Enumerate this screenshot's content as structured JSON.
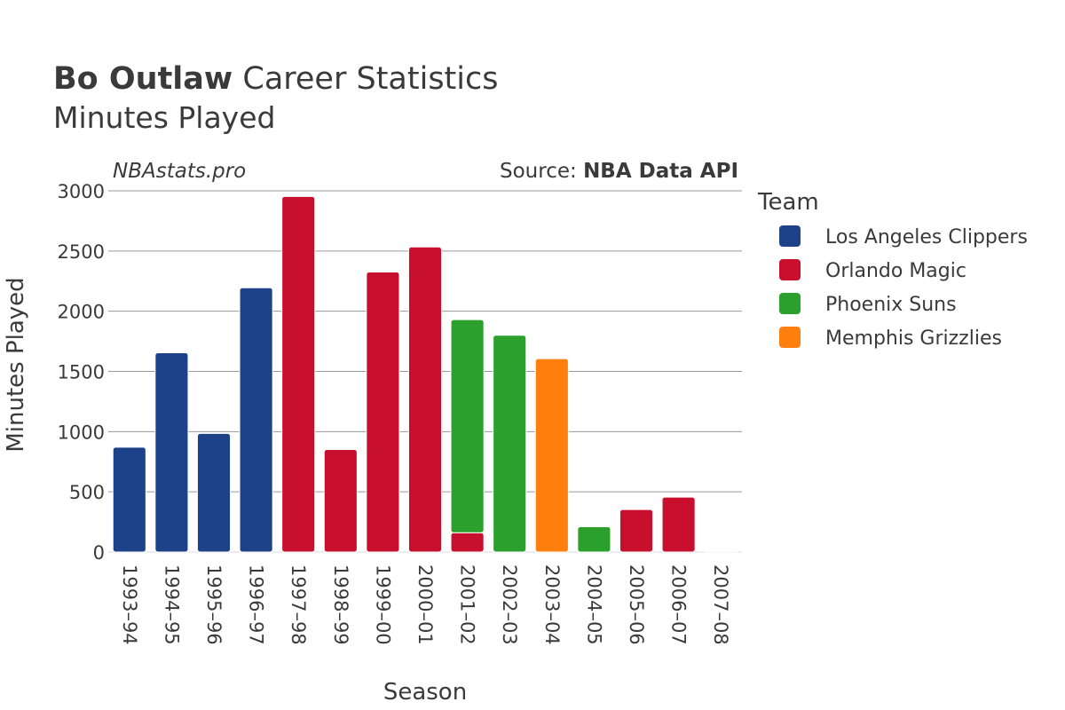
{
  "title": {
    "player": "Bo Outlaw",
    "rest": " Career Statistics",
    "subtitle": "Minutes Played"
  },
  "watermark": "NBAstats.pro",
  "source": {
    "prefix": "Source: ",
    "name": "NBA Data API"
  },
  "legend": {
    "title": "Team"
  },
  "colors": {
    "Los Angeles Clippers": "#1d428a",
    "Orlando Magic": "#c8102e",
    "Phoenix Suns": "#2ca02c",
    "Memphis Grizzlies": "#ff7f0e"
  },
  "chart_data": {
    "type": "bar",
    "stacked": true,
    "title": "Bo Outlaw Career Statistics",
    "subtitle": "Minutes Played",
    "xlabel": "Season",
    "ylabel": "Minutes Played",
    "ylim": [
      0,
      3000
    ],
    "yticks": [
      0,
      500,
      1000,
      1500,
      2000,
      2500,
      3000
    ],
    "grid": true,
    "legend_position": "right",
    "categories": [
      "1993–94",
      "1994–95",
      "1995–96",
      "1996–97",
      "1997–98",
      "1998–99",
      "1999–00",
      "2000–01",
      "2001–02",
      "2002–03",
      "2003–04",
      "2004–05",
      "2005–06",
      "2006–07",
      "2007–08"
    ],
    "series": [
      {
        "name": "Los Angeles Clippers",
        "values": [
          871,
          1655,
          985,
          2195,
          0,
          0,
          0,
          0,
          0,
          0,
          0,
          0,
          0,
          0,
          0
        ]
      },
      {
        "name": "Orlando Magic",
        "values": [
          0,
          0,
          0,
          0,
          2953,
          851,
          2326,
          2534,
          160,
          0,
          0,
          0,
          353,
          456,
          6
        ]
      },
      {
        "name": "Phoenix Suns",
        "values": [
          0,
          0,
          0,
          0,
          0,
          0,
          0,
          0,
          1770,
          1800,
          0,
          210,
          0,
          0,
          0
        ]
      },
      {
        "name": "Memphis Grizzlies",
        "values": [
          0,
          0,
          0,
          0,
          0,
          0,
          0,
          0,
          0,
          0,
          1606,
          0,
          0,
          0,
          0
        ]
      }
    ]
  }
}
